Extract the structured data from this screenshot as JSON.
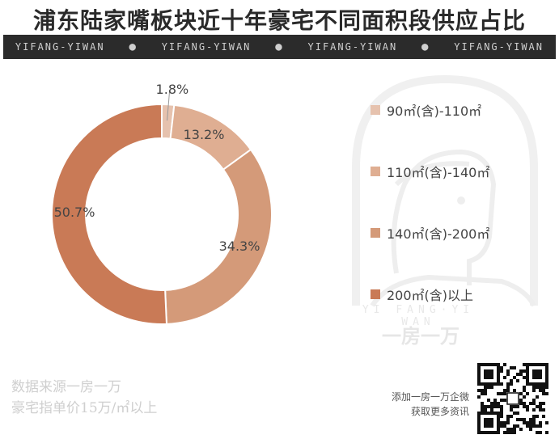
{
  "title": "浦东陆家嘴板块近十年豪宅不同面积段供应占比",
  "banner": {
    "items": [
      "YIFANG-YIWAN",
      "YIFANG-YIWAN",
      "YIFANG-YIWAN",
      "YIFANG-YIWAN"
    ]
  },
  "watermark": {
    "text": "YI FANG·YI WAN",
    "brand": "一房一万"
  },
  "notes": {
    "source": "数据来源一房一万",
    "definition": "豪宅指单价15万/㎡以上"
  },
  "qr": {
    "caption_line1": "添加一房一万企微",
    "caption_line2": "获取更多资讯"
  },
  "colors": {
    "seg1": "#e6c2ae",
    "seg2": "#dfae92",
    "seg3": "#d49a79",
    "seg4": "#c97a56"
  },
  "chart_data": {
    "type": "pie",
    "style": "donut",
    "categories": [
      "90㎡(含)-110㎡",
      "110㎡(含)-140㎡",
      "140㎡(含)-200㎡",
      "200㎡(含)以上"
    ],
    "values": [
      1.8,
      13.2,
      34.3,
      50.7
    ],
    "labels": [
      "1.8%",
      "13.2%",
      "34.3%",
      "50.7%"
    ],
    "unit": "%",
    "legend_position": "right"
  }
}
